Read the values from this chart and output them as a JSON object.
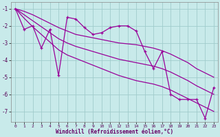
{
  "xlabel": "Windchill (Refroidissement éolien,°C)",
  "x": [
    0,
    1,
    2,
    3,
    4,
    5,
    6,
    7,
    8,
    9,
    10,
    11,
    12,
    13,
    14,
    15,
    16,
    17,
    18,
    19,
    20,
    21,
    22,
    23
  ],
  "y_main": [
    -1.0,
    -2.2,
    -2.0,
    -3.3,
    -2.2,
    -4.9,
    -1.5,
    -1.6,
    -2.1,
    -2.5,
    -2.4,
    -2.1,
    -2.0,
    -2.0,
    -2.3,
    -3.5,
    -4.5,
    -3.5,
    -6.0,
    -6.3,
    -6.3,
    -6.3,
    -7.4,
    -5.6
  ],
  "y_reg": [
    -1.0,
    -1.35,
    -1.7,
    -2.05,
    -2.4,
    -2.75,
    -3.0,
    -3.2,
    -3.35,
    -3.5,
    -3.65,
    -3.8,
    -3.95,
    -4.05,
    -4.15,
    -4.25,
    -4.35,
    -4.5,
    -4.7,
    -4.95,
    -5.2,
    -5.5,
    -5.75,
    -6.0
  ],
  "y_upper": [
    -1.0,
    -1.15,
    -1.35,
    -1.6,
    -1.85,
    -2.1,
    -2.3,
    -2.5,
    -2.6,
    -2.7,
    -2.8,
    -2.9,
    -3.0,
    -3.05,
    -3.1,
    -3.2,
    -3.3,
    -3.45,
    -3.65,
    -3.9,
    -4.15,
    -4.5,
    -4.75,
    -5.0
  ],
  "y_lower": [
    -1.0,
    -1.55,
    -2.05,
    -2.5,
    -2.95,
    -3.4,
    -3.7,
    -3.9,
    -4.1,
    -4.3,
    -4.5,
    -4.7,
    -4.9,
    -5.05,
    -5.2,
    -5.3,
    -5.4,
    -5.55,
    -5.75,
    -6.0,
    -6.25,
    -6.5,
    -6.75,
    -7.0
  ],
  "line_color": "#990099",
  "bg_color": "#c8eaea",
  "grid_color": "#a0cccc",
  "ylim": [
    -7.6,
    -0.6
  ],
  "xlim": [
    -0.5,
    23.5
  ],
  "yticks": [
    -7,
    -6,
    -5,
    -4,
    -3,
    -2,
    -1
  ],
  "xticks": [
    0,
    1,
    2,
    3,
    4,
    5,
    6,
    7,
    8,
    9,
    10,
    11,
    12,
    13,
    14,
    15,
    16,
    17,
    18,
    19,
    20,
    21,
    22,
    23
  ]
}
